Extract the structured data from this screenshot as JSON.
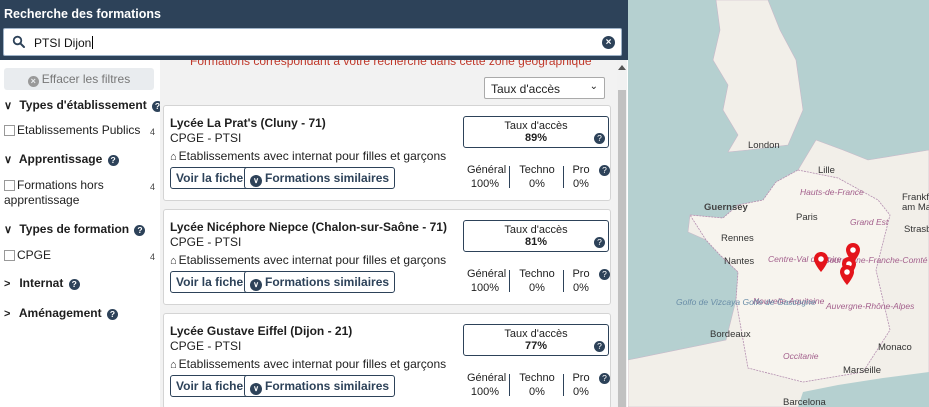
{
  "header": {
    "title": "Recherche des formations"
  },
  "search": {
    "value": "PTSI Dijon"
  },
  "sidebar": {
    "reset_label": "Effacer les filtres",
    "sections": [
      {
        "label": "Types d'établissement",
        "expanded": true,
        "options": [
          {
            "label": "Etablissements Publics",
            "count": "4"
          }
        ]
      },
      {
        "label": "Apprentissage",
        "expanded": true,
        "options": [
          {
            "label": "Formations hors apprentissage",
            "count": "4"
          }
        ]
      },
      {
        "label": "Types de formation",
        "expanded": true,
        "options": [
          {
            "label": "CPGE",
            "count": "4"
          }
        ]
      },
      {
        "label": "Internat",
        "expanded": false
      },
      {
        "label": "Aménagement",
        "expanded": false
      }
    ]
  },
  "results": {
    "truncated_header": "Formations correspondant à votre recherche dans cette zone géographique",
    "sort": {
      "selected": "Taux d'accès"
    },
    "cards": [
      {
        "title": "Lycée La Prat's (Cluny - 71)",
        "subtitle": "CPGE - PTSI",
        "boarding": "Etablissements avec internat pour filles et garçons",
        "view_label": "Voir la fiche",
        "similar_label": "Formations similaires",
        "rate_label": "Taux d'accès",
        "rate_value": "89%",
        "stats": [
          {
            "label": "Général",
            "value": "100%"
          },
          {
            "label": "Techno",
            "value": "0%"
          },
          {
            "label": "Pro",
            "value": "0%"
          }
        ]
      },
      {
        "title": "Lycée Nicéphore Niepce (Chalon-sur-Saône - 71)",
        "subtitle": "CPGE - PTSI",
        "boarding": "Etablissements avec internat pour filles et garçons",
        "view_label": "Voir la fiche",
        "similar_label": "Formations similaires",
        "rate_label": "Taux d'accès",
        "rate_value": "81%",
        "stats": [
          {
            "label": "Général",
            "value": "100%"
          },
          {
            "label": "Techno",
            "value": "0%"
          },
          {
            "label": "Pro",
            "value": "0%"
          }
        ]
      },
      {
        "title": "Lycée Gustave Eiffel (Dijon - 21)",
        "subtitle": "CPGE - PTSI",
        "boarding": "Etablissements avec internat pour filles et garçons",
        "view_label": "Voir la fiche",
        "similar_label": "Formations similaires",
        "rate_label": "Taux d'accès",
        "rate_value": "77%",
        "stats": [
          {
            "label": "Général",
            "value": "100%"
          },
          {
            "label": "Techno",
            "value": "0%"
          },
          {
            "label": "Pro",
            "value": "0%"
          }
        ]
      }
    ]
  },
  "map": {
    "cities": [
      "London",
      "Lille",
      "Paris",
      "Guernsey",
      "Rennes",
      "Nantes",
      "Bordeaux",
      "Marseille",
      "Monaco",
      "Barcelona",
      "Frankfu",
      "am Ma",
      "Strasb"
    ],
    "regions": [
      "Hauts-de-France",
      "Grand Est",
      "Centre-Val de Loire",
      "Bourgogne-Franche-Comté",
      "Nouvelle-Aquitaine",
      "Auvergne-Rhône-Alpes",
      "Occitanie"
    ],
    "seas": [
      "Golfo de Vizcaya Golfe de Gascogne"
    ],
    "colors": {
      "sea": "#b5d0d0",
      "land": "#f2efe9",
      "marker": "#e4141b"
    }
  }
}
